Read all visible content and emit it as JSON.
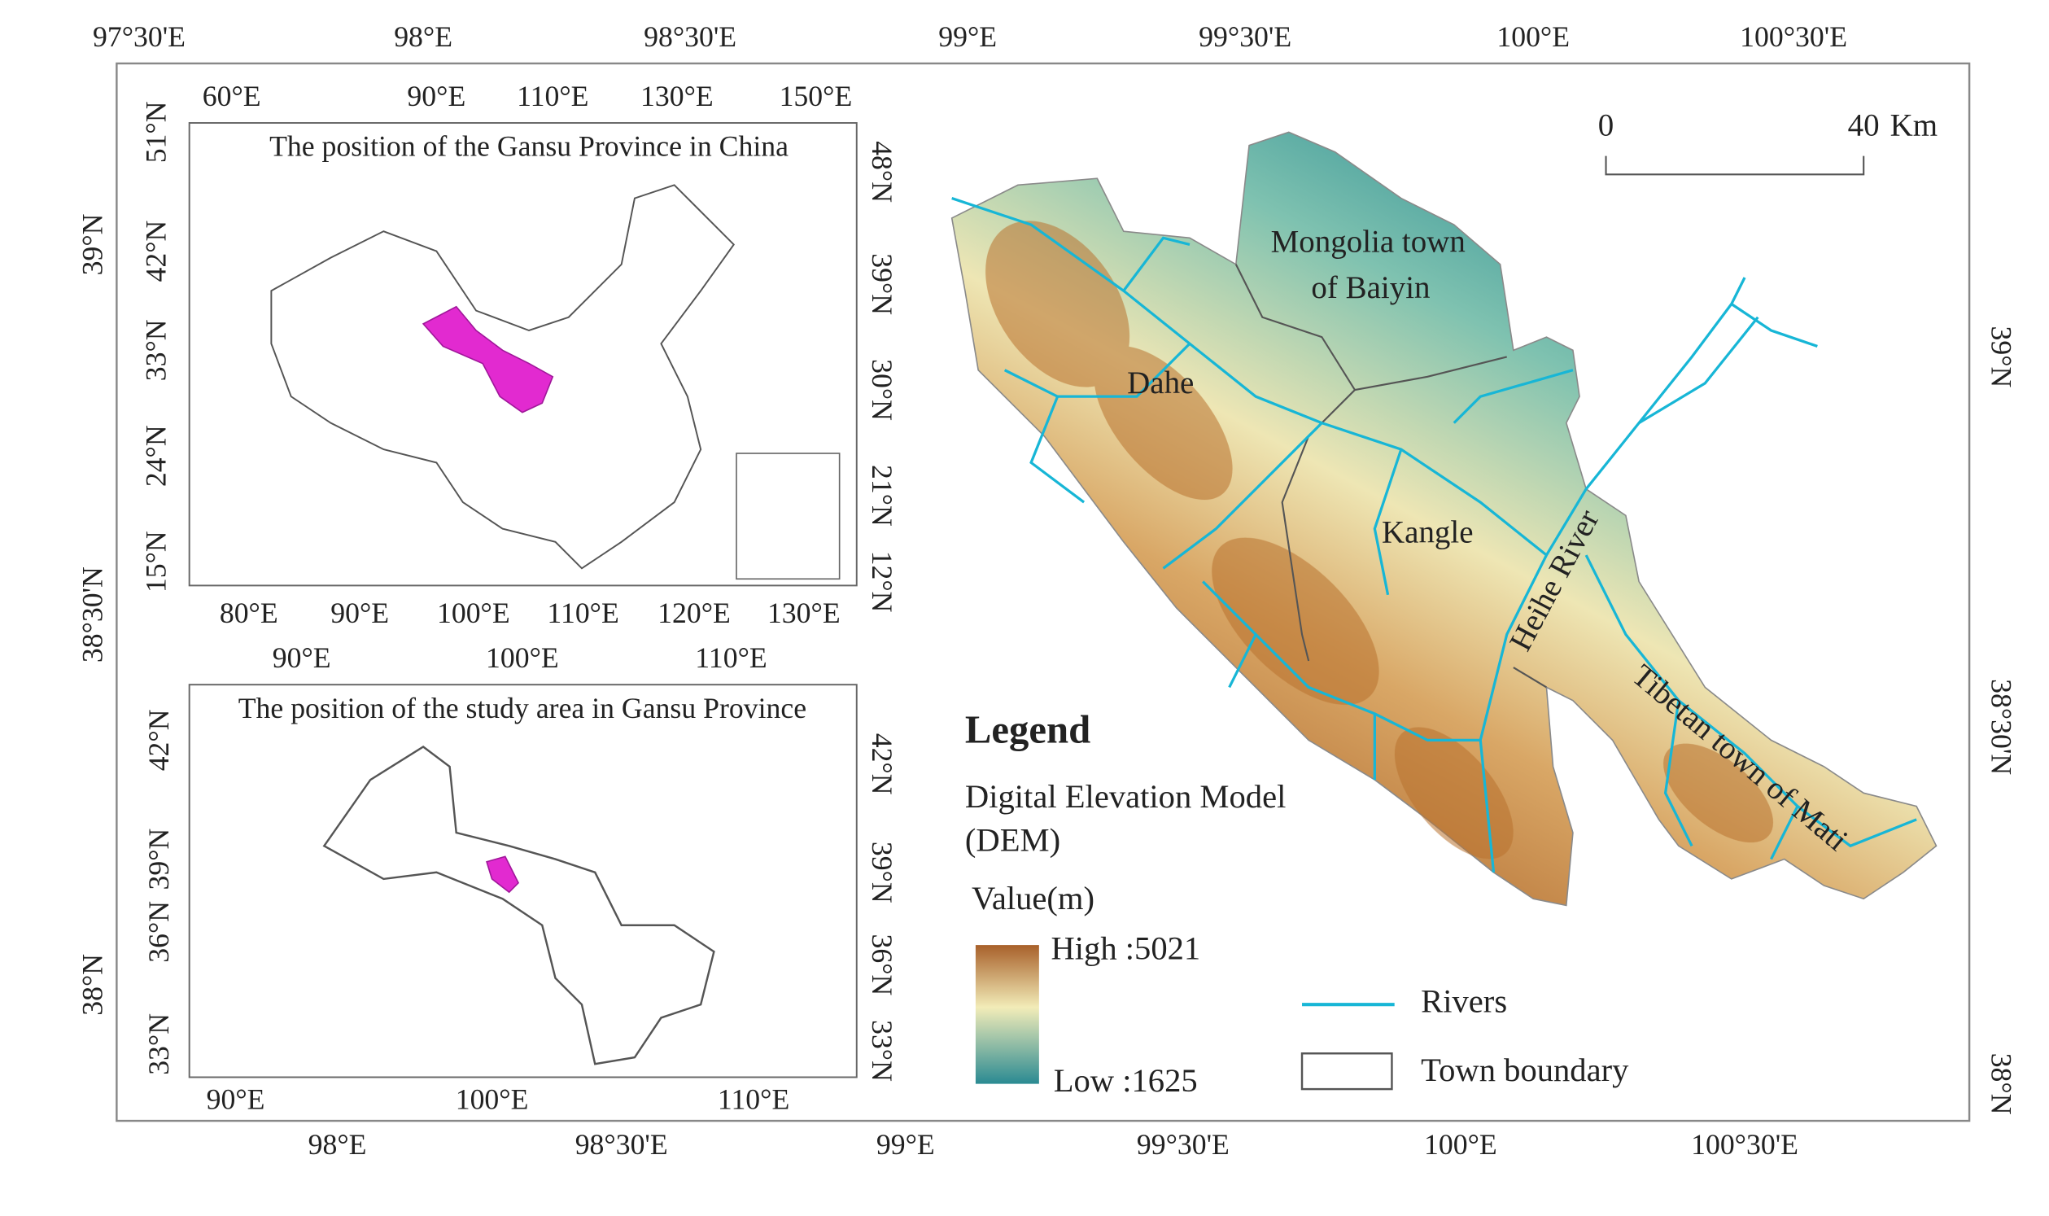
{
  "map": {
    "top_axis": [
      "97°30'E",
      "98°E",
      "98°30'E",
      "99°E",
      "99°30'E",
      "100°E",
      "100°30'E"
    ],
    "bottom_axis": [
      "98°E",
      "98°30'E",
      "99°E",
      "99°30'E",
      "100°E",
      "100°30'E"
    ],
    "left_axis": [
      "39°N",
      "38°30'N",
      "38°N"
    ],
    "right_axis": [
      "39°N",
      "38°30'N",
      "38°N"
    ],
    "inset_china": {
      "title": "The position of the Gansu Province in  China",
      "top_axis": [
        "60°E",
        "90°E",
        "110°E",
        "130°E",
        "150°E"
      ],
      "bottom_axis": [
        "80°E",
        "90°E",
        "100°E",
        "110°E",
        "120°E",
        "130°E"
      ],
      "left_axis": [
        "51°N",
        "42°N",
        "33°N",
        "24°N",
        "15°N"
      ],
      "right_axis": [
        "48°N",
        "39°N",
        "30°N",
        "21°N",
        "12°N"
      ]
    },
    "inset_gansu": {
      "title": "The position of the study area in Gansu Province",
      "top_axis": [
        "90°E",
        "100°E",
        "110°E"
      ],
      "bottom_axis": [
        "90°E",
        "100°E",
        "110°E"
      ],
      "left_axis": [
        "42°N",
        "39°N",
        "36°N",
        "33°N"
      ],
      "right_axis": [
        "42°N",
        "39°N",
        "36°N",
        "33°N"
      ]
    },
    "places": [
      "Mongolia town",
      "of Baiyin",
      "Dahe",
      "Kangle",
      "Heihe River",
      "Tibetan town of Mati"
    ],
    "scale_bar": {
      "start": 0,
      "end": 40,
      "unit": "Km"
    },
    "legend": {
      "title": "Legend",
      "layer": [
        "Digital Elevation Model",
        "(DEM)"
      ],
      "field": "Value(m)",
      "high": "High :5021",
      "low": "Low :1625",
      "rivers": "Rivers",
      "boundary": "Town boundary"
    }
  }
}
